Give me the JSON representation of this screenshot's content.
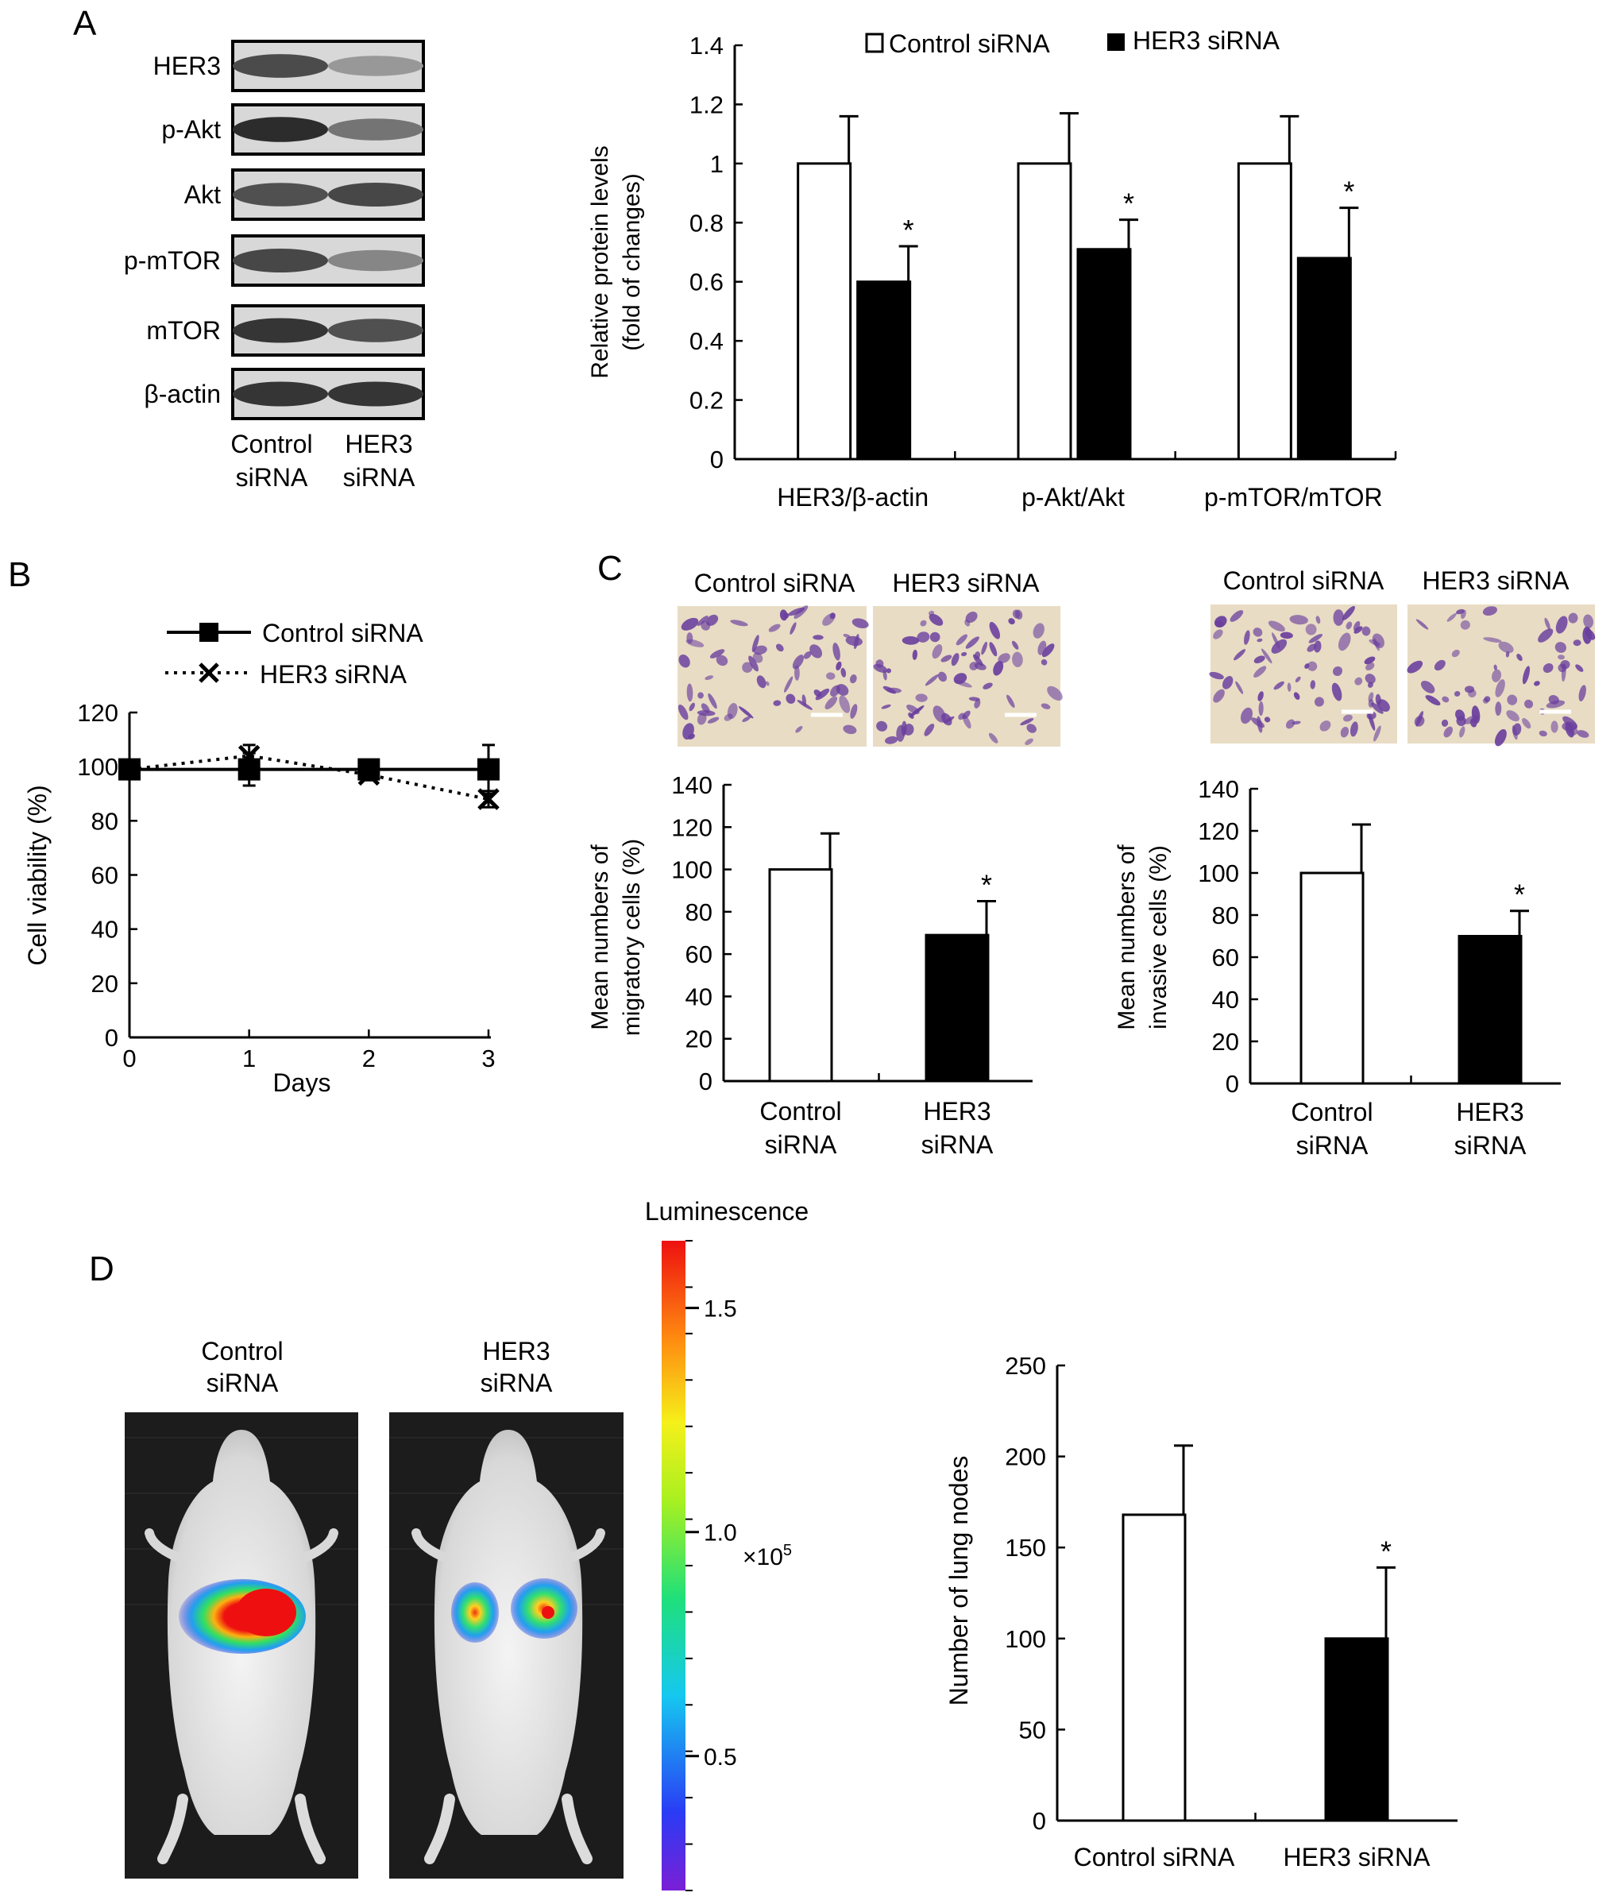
{
  "panel_letters": {
    "a": "A",
    "b": "B",
    "c": "C",
    "d": "D"
  },
  "blot": {
    "rows": [
      {
        "label": "HER3",
        "bands": [
          0.78,
          0.35
        ]
      },
      {
        "label": "p-Akt",
        "bands": [
          0.95,
          0.55
        ]
      },
      {
        "label": "Akt",
        "bands": [
          0.75,
          0.8
        ]
      },
      {
        "label": "p-mTOR",
        "bands": [
          0.8,
          0.45
        ]
      },
      {
        "label": "mTOR",
        "bands": [
          0.9,
          0.75
        ]
      },
      {
        "label": "β-actin",
        "bands": [
          0.9,
          0.9
        ]
      }
    ],
    "lanes": [
      {
        "line1": "Control",
        "line2": "siRNA"
      },
      {
        "line1": "HER3",
        "line2": "siRNA"
      }
    ]
  },
  "legends": {
    "control": "Control siRNA",
    "her3": "HER3 siRNA"
  },
  "micrographs": {
    "migration": [
      "Control siRNA",
      "HER3 siRNA"
    ],
    "invasion": [
      "Control siRNA",
      "HER3 siRNA"
    ]
  },
  "bioluminescence": {
    "mice": [
      {
        "line1": "Control",
        "line2": "siRNA"
      },
      {
        "line1": "HER3",
        "line2": "siRNA"
      }
    ],
    "colorbar": {
      "title": "Luminescence",
      "ticks": [
        "1.5",
        "1.0",
        "0.5"
      ],
      "tick_values": [
        1.5,
        1.0,
        0.5
      ],
      "range": [
        0.2,
        1.65
      ],
      "scale_base": "×10",
      "scale_exp": "5"
    }
  },
  "colors": {
    "control_fill": "#ffffff",
    "her3_fill": "#000000",
    "stain": "#6a3f9e",
    "background_stain": "#e8dcc4"
  },
  "chart_data": [
    {
      "panel": "A",
      "type": "bar",
      "categories": [
        "HER3/β-actin",
        "p-Akt/Akt",
        "p-mTOR/mTOR"
      ],
      "series": [
        {
          "name": "Control siRNA",
          "values": [
            1.0,
            1.0,
            1.0
          ],
          "errors": [
            0.16,
            0.17,
            0.16
          ],
          "significant": [
            false,
            false,
            false
          ]
        },
        {
          "name": "HER3 siRNA",
          "values": [
            0.6,
            0.71,
            0.68
          ],
          "errors": [
            0.12,
            0.1,
            0.17
          ],
          "significant": [
            true,
            true,
            true
          ]
        }
      ],
      "ylabel_line1": "Relative protein levels",
      "ylabel_line2": "(fold of changes)",
      "ylim": [
        0,
        1.4
      ],
      "yticks": [
        0,
        0.2,
        0.4,
        0.6,
        0.8,
        1,
        1.2,
        1.4
      ],
      "ytick_labels": [
        "0",
        "0.2",
        "0.4",
        "0.6",
        "0.8",
        "1",
        "1.2",
        "1.4"
      ],
      "significance_mark": "*",
      "legend": "top"
    },
    {
      "panel": "B",
      "type": "line",
      "x": [
        0,
        1,
        2,
        3
      ],
      "xticks": [
        "0",
        "1",
        "2",
        "3"
      ],
      "xlim": [
        0,
        3
      ],
      "series": [
        {
          "name": "Control siRNA",
          "marker": "square",
          "line": "solid",
          "values": [
            99,
            99,
            99,
            99
          ],
          "errors": [
            2,
            6,
            2,
            9
          ]
        },
        {
          "name": "HER3 siRNA",
          "marker": "x",
          "line": "dotted",
          "values": [
            99,
            104,
            97,
            88
          ],
          "errors": [
            1,
            4,
            2,
            3
          ]
        }
      ],
      "xlabel": "Days",
      "ylabel": "Cell viability (%)",
      "ylim": [
        0,
        120
      ],
      "yticks": [
        "0",
        "20",
        "40",
        "60",
        "80",
        "100",
        "120"
      ],
      "legend": "top"
    },
    {
      "panel": "C-migration",
      "type": "bar",
      "categories": [
        {
          "line1": "Control",
          "line2": "siRNA"
        },
        {
          "line1": "HER3",
          "line2": "siRNA"
        }
      ],
      "values": [
        100,
        69
      ],
      "errors": [
        17,
        16
      ],
      "significant": [
        false,
        true
      ],
      "ylabel_line1": "Mean numbers of",
      "ylabel_line2": "migratory cells (%)",
      "ylim": [
        0,
        140
      ],
      "yticks": [
        "0",
        "20",
        "40",
        "60",
        "80",
        "100",
        "120",
        "140"
      ],
      "significance_mark": "*"
    },
    {
      "panel": "C-invasion",
      "type": "bar",
      "categories": [
        {
          "line1": "Control",
          "line2": "siRNA"
        },
        {
          "line1": "HER3",
          "line2": "siRNA"
        }
      ],
      "values": [
        100,
        70
      ],
      "errors": [
        23,
        12
      ],
      "significant": [
        false,
        true
      ],
      "ylabel_line1": "Mean numbers of",
      "ylabel_line2": "invasive cells (%)",
      "ylim": [
        0,
        140
      ],
      "yticks": [
        "0",
        "20",
        "40",
        "60",
        "80",
        "100",
        "120",
        "140"
      ],
      "significance_mark": "*"
    },
    {
      "panel": "D",
      "type": "bar",
      "categories": [
        "Control siRNA",
        "HER3 siRNA"
      ],
      "values": [
        168,
        100
      ],
      "errors": [
        38,
        39
      ],
      "significant": [
        false,
        true
      ],
      "ylabel": "Number of lung nodes",
      "ylim": [
        0,
        250
      ],
      "yticks": [
        "0",
        "50",
        "100",
        "150",
        "200",
        "250"
      ],
      "significance_mark": "*"
    }
  ]
}
